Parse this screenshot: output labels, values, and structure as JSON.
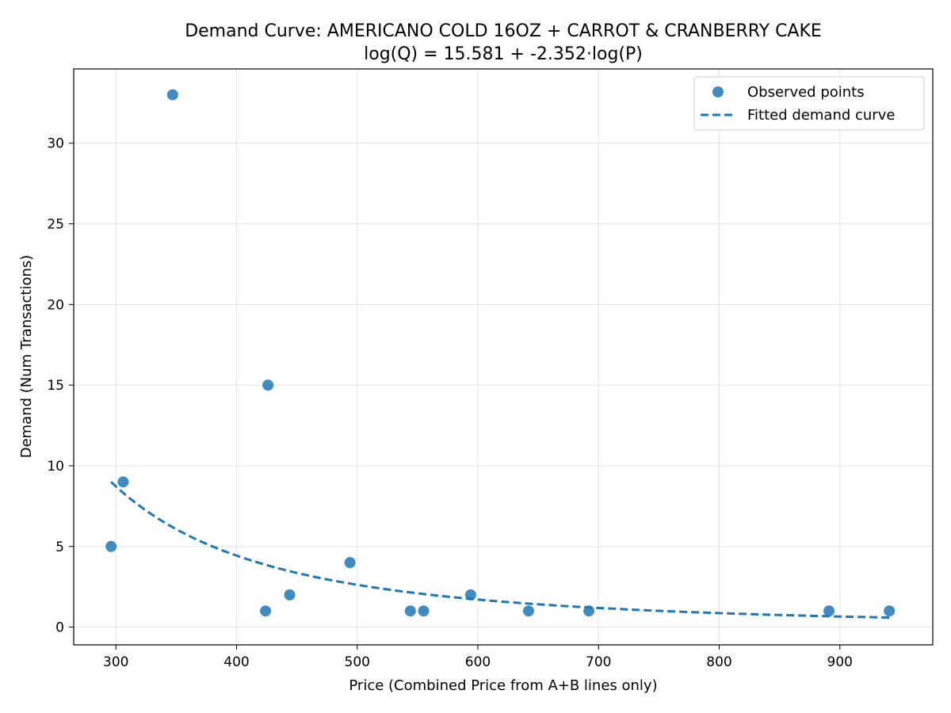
{
  "chart_data": {
    "type": "scatter",
    "title": "Demand Curve: AMERICANO COLD 16OZ + CARROT & CRANBERRY CAKE",
    "subtitle": "log(Q) = 15.581 + -2.352·log(P)",
    "xlabel": "Price (Combined Price from A+B lines only)",
    "ylabel": "Demand (Num Transactions)",
    "xlim": [
      265,
      977
    ],
    "ylim": [
      -1.1,
      34.6
    ],
    "xticks": [
      300,
      400,
      500,
      600,
      700,
      800,
      900
    ],
    "yticks": [
      0,
      5,
      10,
      15,
      20,
      25,
      30
    ],
    "grid": true,
    "legend_position": "top-right",
    "series": [
      {
        "name": "Observed points",
        "kind": "scatter",
        "color": "#1f77b4",
        "points": [
          {
            "x": 296,
            "y": 5
          },
          {
            "x": 306,
            "y": 9
          },
          {
            "x": 347,
            "y": 33
          },
          {
            "x": 424,
            "y": 1
          },
          {
            "x": 426,
            "y": 15
          },
          {
            "x": 444,
            "y": 2
          },
          {
            "x": 494,
            "y": 4
          },
          {
            "x": 544,
            "y": 1
          },
          {
            "x": 555,
            "y": 1
          },
          {
            "x": 594,
            "y": 2
          },
          {
            "x": 642,
            "y": 1
          },
          {
            "x": 692,
            "y": 1
          },
          {
            "x": 891,
            "y": 1
          },
          {
            "x": 941,
            "y": 1
          }
        ]
      },
      {
        "name": "Fitted demand curve",
        "kind": "line",
        "style": "dashed",
        "color": "#1f77b4",
        "intercept": 15.581,
        "slope": -2.352,
        "x_range": [
          296,
          941
        ]
      }
    ]
  }
}
